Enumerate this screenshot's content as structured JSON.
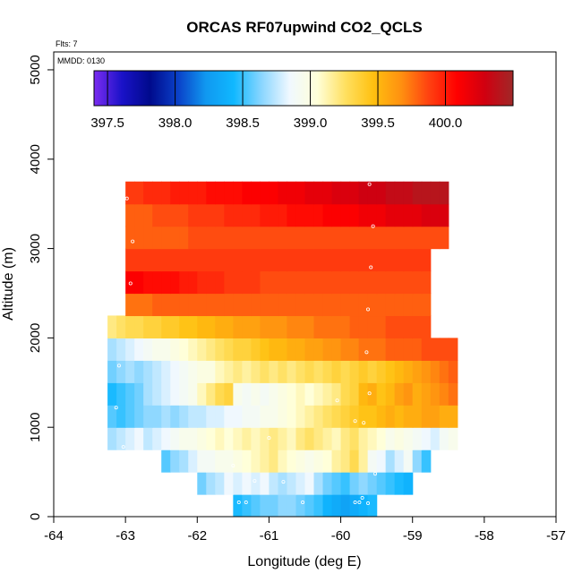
{
  "chart_data": {
    "type": "heatmap",
    "title": "ORCAS RF07upwind CO2_QCLS",
    "annotations": {
      "flts": "Flts: 7",
      "mmdd": "MMDD: 0130"
    },
    "xlabel": "Longitude (deg E)",
    "ylabel": "Altitude (m)",
    "xlim": [
      -64,
      -57
    ],
    "ylim": [
      0,
      5200
    ],
    "x_ticks": [
      "-64",
      "-63",
      "-62",
      "-61",
      "-60",
      "-59",
      "-58",
      "-57"
    ],
    "y_ticks": [
      "0",
      "1000",
      "2000",
      "3000",
      "4000",
      "5000"
    ],
    "colorbar": {
      "min": 397.4,
      "max": 400.5,
      "ticks": [
        "397.5",
        "398.0",
        "398.5",
        "399.0",
        "399.5",
        "400.0"
      ],
      "tick_values": [
        397.5,
        398.0,
        398.5,
        399.0,
        399.5,
        400.0
      ],
      "colors": [
        "#7b2cf0",
        "#1a12c8",
        "#000a8c",
        "#0a40c8",
        "#1098f0",
        "#10b8ff",
        "#8ad6ff",
        "#f0f8ff",
        "#ffffd8",
        "#ffe060",
        "#ffc010",
        "#ff9010",
        "#ff4010",
        "#ff0000",
        "#d00010",
        "#a02828"
      ]
    },
    "cell_size": {
      "dlon": 0.25,
      "dalt": 250
    },
    "rows": [
      {
        "alt": 0,
        "lon_start": -61.5,
        "values": [
          398.45,
          398.5,
          398.55,
          398.6,
          398.6,
          398.65,
          398.65,
          398.6,
          398.55,
          398.5,
          398.4,
          398.35,
          398.3,
          398.35,
          398.4,
          398.45
        ]
      },
      {
        "alt": 250,
        "lon_start": -62.0,
        "values": [
          398.6,
          398.7,
          398.75,
          398.85,
          398.8,
          398.85,
          398.8,
          398.85,
          398.75,
          398.7,
          398.75,
          398.8,
          398.85,
          398.7,
          398.6,
          398.55,
          398.5,
          398.6,
          398.65,
          398.6,
          398.55,
          398.5,
          398.45,
          398.4
        ]
      },
      {
        "alt": 500,
        "lon_start": -62.5,
        "values": [
          398.55,
          398.65,
          398.7,
          398.8,
          398.9,
          398.9,
          398.95,
          398.95,
          399.0,
          399.05,
          399.1,
          399.15,
          399.2,
          399.1,
          399.05,
          399.0,
          398.95,
          399.0,
          399.05,
          399.15,
          399.2,
          399.3,
          399.15,
          398.9,
          398.85,
          398.7,
          398.8,
          398.9,
          398.65,
          398.5
        ]
      },
      {
        "alt": 750,
        "lon_start": -63.25,
        "values": [
          398.7,
          398.75,
          398.8,
          398.85,
          398.75,
          398.8,
          398.85,
          398.9,
          398.95,
          398.95,
          399.0,
          399.05,
          399.1,
          399.05,
          399.1,
          399.15,
          399.1,
          399.15,
          399.2,
          399.15,
          399.1,
          399.2,
          399.25,
          399.2,
          399.15,
          399.1,
          399.2,
          399.25,
          399.15,
          399.1,
          399.05,
          398.95,
          399.0,
          398.95,
          398.9,
          398.85,
          398.8,
          398.9,
          398.95
        ]
      },
      {
        "alt": 1000,
        "lon_start": -63.25,
        "values": [
          398.55,
          398.5,
          398.55,
          398.6,
          398.65,
          398.65,
          398.7,
          398.65,
          398.7,
          398.75,
          398.75,
          398.8,
          398.8,
          398.85,
          398.85,
          398.9,
          398.9,
          398.95,
          398.95,
          399.0,
          399.05,
          399.1,
          399.15,
          399.2,
          399.25,
          399.3,
          399.35,
          399.4,
          399.45,
          399.45,
          399.5,
          399.55,
          399.5,
          399.55,
          399.55,
          399.6,
          399.6,
          399.55,
          399.55
        ]
      },
      {
        "alt": 1250,
        "lon_start": -63.25,
        "values": [
          398.45,
          398.5,
          398.55,
          398.6,
          398.7,
          398.75,
          398.8,
          398.85,
          398.9,
          398.95,
          399.1,
          399.2,
          399.3,
          399.35,
          398.95,
          398.9,
          398.95,
          398.9,
          398.95,
          399.0,
          399.05,
          399.1,
          399.05,
          399.1,
          399.15,
          399.2,
          399.3,
          399.35,
          399.5,
          399.55,
          399.45,
          399.5,
          399.6,
          399.65,
          399.55,
          399.6,
          399.65,
          399.7,
          399.75
        ]
      },
      {
        "alt": 1500,
        "lon_start": -63.25,
        "values": [
          398.6,
          398.65,
          398.7,
          398.65,
          398.7,
          398.75,
          398.8,
          398.85,
          398.9,
          398.95,
          399.0,
          399.0,
          399.1,
          399.15,
          399.2,
          399.15,
          399.2,
          399.25,
          399.2,
          399.25,
          399.2,
          399.25,
          399.3,
          399.25,
          399.3,
          399.35,
          399.3,
          399.35,
          399.4,
          399.35,
          399.4,
          399.45,
          399.5,
          399.55,
          399.6,
          399.65,
          399.7,
          399.75,
          399.8
        ]
      },
      {
        "alt": 1750,
        "lon_start": -63.25,
        "values": [
          398.7,
          398.75,
          398.8,
          398.85,
          398.9,
          398.95,
          398.95,
          399.0,
          399.05,
          399.1,
          399.15,
          399.2,
          399.25,
          399.3,
          399.35,
          399.35,
          399.4,
          399.45,
          399.5,
          399.5,
          399.55,
          399.55,
          399.6,
          399.6,
          399.65,
          399.65,
          399.7,
          399.7,
          399.75,
          399.75,
          399.75,
          399.8,
          399.8,
          399.8,
          399.8,
          399.85,
          399.85,
          399.85,
          399.85
        ]
      },
      {
        "alt": 2000,
        "lon_start": -63.25,
        "values": [
          399.2,
          399.25,
          399.3,
          399.3,
          399.35,
          399.35,
          399.4,
          399.4,
          399.45,
          399.45,
          399.5,
          399.5,
          399.55,
          399.55,
          399.6,
          399.6,
          399.6,
          399.65,
          399.65,
          399.65,
          399.7,
          399.7,
          399.7,
          399.75,
          399.75,
          399.75,
          399.75,
          399.8,
          399.8,
          399.8,
          399.8,
          399.85,
          399.85,
          399.85,
          399.85,
          399.85
        ]
      },
      {
        "alt": 2250,
        "lon_start": -63.0,
        "values": [
          399.75,
          399.75,
          399.75,
          399.8,
          399.8,
          399.8,
          399.8,
          399.8,
          399.8,
          399.8,
          399.8,
          399.8,
          399.8,
          399.8,
          399.8,
          399.8,
          399.8,
          399.8,
          399.8,
          399.8,
          399.8,
          399.8,
          399.8,
          399.8,
          399.8,
          399.8,
          399.8,
          399.8,
          399.8,
          399.8,
          399.8,
          399.8,
          399.8,
          399.8
        ]
      },
      {
        "alt": 2500,
        "lon_start": -63.0,
        "values": [
          400.1,
          400.1,
          400.05,
          400.05,
          400.05,
          400.05,
          400.0,
          400.0,
          399.95,
          399.95,
          399.95,
          399.9,
          399.9,
          399.9,
          399.9,
          399.85,
          399.85,
          399.85,
          399.85,
          399.85,
          399.85,
          399.85,
          399.85,
          399.85,
          399.85,
          399.85,
          399.85,
          399.85,
          399.85,
          399.85,
          399.85,
          399.85,
          399.85,
          399.85
        ]
      },
      {
        "alt": 2750,
        "lon_start": -63.0,
        "values": [
          399.9,
          399.9,
          399.9,
          399.9,
          399.9,
          399.9,
          399.9,
          399.9,
          399.9,
          399.9,
          399.9,
          399.9,
          399.9,
          399.9,
          399.9,
          399.9,
          399.9,
          399.9,
          399.9,
          399.9,
          399.9,
          399.9,
          399.9,
          399.9,
          399.9,
          399.9,
          399.9,
          399.9,
          399.9,
          399.9,
          399.9,
          399.9,
          399.9,
          399.9
        ]
      },
      {
        "alt": 3000,
        "lon_start": -63.0,
        "values": [
          399.8,
          399.8,
          399.8,
          399.8,
          399.8,
          399.8,
          399.8,
          399.85,
          399.85,
          399.85,
          399.85,
          399.85,
          399.85,
          399.85,
          399.85,
          399.85,
          399.85,
          399.85,
          399.85,
          399.85,
          399.85,
          399.85,
          399.85,
          399.85,
          399.85,
          399.85,
          399.85,
          399.85,
          399.85,
          399.85,
          399.85,
          399.85,
          399.85,
          399.85,
          399.85,
          399.85
        ]
      },
      {
        "alt": 3250,
        "lon_start": -63.0,
        "values": [
          399.8,
          399.8,
          399.8,
          399.85,
          399.85,
          399.85,
          399.85,
          399.9,
          399.9,
          399.9,
          399.9,
          399.95,
          399.95,
          399.95,
          399.95,
          400.0,
          400.0,
          400.0,
          400.05,
          400.05,
          400.05,
          400.05,
          400.1,
          400.1,
          400.1,
          400.1,
          400.15,
          400.15,
          400.15,
          400.2,
          400.2,
          400.2,
          400.2,
          400.25,
          400.25,
          400.25
        ]
      },
      {
        "alt": 3500,
        "lon_start": -63.0,
        "values": [
          399.9,
          399.9,
          399.95,
          399.95,
          399.95,
          400.0,
          400.0,
          400.0,
          400.0,
          400.05,
          400.05,
          400.05,
          400.05,
          400.1,
          400.1,
          400.1,
          400.1,
          400.15,
          400.15,
          400.15,
          400.2,
          400.2,
          400.2,
          400.25,
          400.25,
          400.25,
          400.3,
          400.3,
          400.3,
          400.35,
          400.35,
          400.35,
          400.4,
          400.4,
          400.4,
          400.4
        ]
      }
    ],
    "points": [
      [
        -62.98,
        3560
      ],
      [
        -59.6,
        3720
      ],
      [
        -62.9,
        3080
      ],
      [
        -59.55,
        3250
      ],
      [
        -59.58,
        2790
      ],
      [
        -62.93,
        2610
      ],
      [
        -59.62,
        2320
      ],
      [
        -59.64,
        1840
      ],
      [
        -63.09,
        1690
      ],
      [
        -59.6,
        1380
      ],
      [
        -63.13,
        1220
      ],
      [
        -59.8,
        1070
      ],
      [
        -61.5,
        570
      ],
      [
        -59.52,
        480
      ],
      [
        -60.8,
        390
      ],
      [
        -61.2,
        400
      ],
      [
        -59.7,
        210
      ],
      [
        -59.62,
        150
      ],
      [
        -59.74,
        160
      ],
      [
        -59.8,
        160
      ],
      [
        -61.42,
        160
      ],
      [
        -61.32,
        160
      ],
      [
        -61.0,
        880
      ],
      [
        -63.03,
        780
      ],
      [
        -60.53,
        160
      ],
      [
        -59.68,
        1050
      ],
      [
        -60.05,
        1300
      ]
    ]
  }
}
